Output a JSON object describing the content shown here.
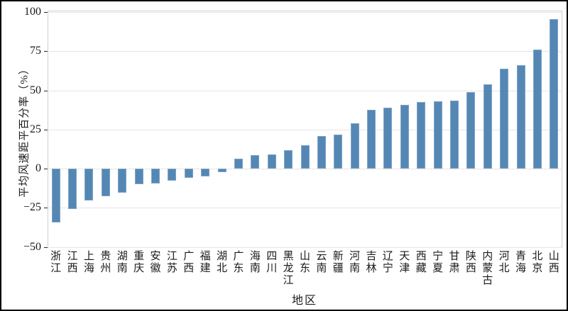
{
  "chart_data": {
    "type": "bar",
    "title": "",
    "xlabel": "地区",
    "ylabel": "平均风速距平百分率（%）",
    "ylim": [
      -50,
      100
    ],
    "yticks": [
      100,
      75,
      50,
      25,
      0,
      -25,
      -50
    ],
    "grid": true,
    "legend": false,
    "bar_color": "#5587b5",
    "bar_edge_color": "#7ea4c6",
    "grid_color": "#e5e5e5",
    "spine_color": "#d0d0d0",
    "text_color": "#1a1a1a",
    "categories": [
      "浙江",
      "江西",
      "上海",
      "贵州",
      "湖南",
      "重庆",
      "安徽",
      "江苏",
      "广西",
      "福建",
      "湖北",
      "广东",
      "海南",
      "四川",
      "黑龙江",
      "山东",
      "云南",
      "新疆",
      "河南",
      "吉林",
      "辽宁",
      "天津",
      "西藏",
      "宁夏",
      "甘肃",
      "陕西",
      "内蒙古",
      "河北",
      "青海",
      "北京",
      "山西"
    ],
    "values": [
      -34.5,
      -25.5,
      -20.5,
      -17.5,
      -15.5,
      -10,
      -9.5,
      -7.5,
      -6,
      -5,
      -2,
      6.5,
      8.5,
      9,
      12,
      15,
      21,
      22,
      29,
      37.5,
      39,
      41,
      42.5,
      43,
      43.5,
      49,
      54,
      64,
      66,
      76,
      95.5
    ]
  }
}
